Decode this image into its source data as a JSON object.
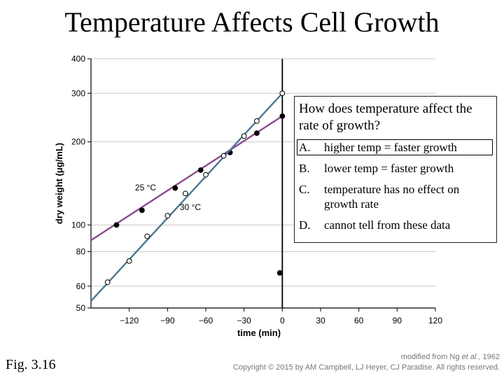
{
  "title": "Temperature Affects Cell Growth",
  "question": {
    "prompt": "How does temperature affect the rate of growth?",
    "choices": [
      {
        "letter": "A.",
        "text": "higher temp = faster growth"
      },
      {
        "letter": "B.",
        "text": "lower temp = faster growth"
      },
      {
        "letter": "C.",
        "text": "temperature has no effect on growth rate"
      },
      {
        "letter": "D.",
        "text": "cannot tell from these data"
      }
    ]
  },
  "figure_label": "Fig. 3.16",
  "credit": {
    "line1_prefix": "modified from Ng ",
    "line1_italic": "et al.",
    "line1_suffix": ", 1962",
    "line2": "Copyright © 2015 by AM Campbell, LJ Heyer, CJ Paradise. All rights reserved."
  },
  "colors": {
    "line_25": "#8a4a8f",
    "line_30": "#4a7893",
    "axis": "#000000",
    "grid": "#c8c8c8"
  },
  "chart_data": {
    "type": "scatter",
    "xlabel": "time (min)",
    "ylabel": "dry weight (μg/mL)",
    "x_ticks": [
      -120,
      -90,
      -60,
      -30,
      0,
      30,
      60,
      90,
      120
    ],
    "x_tick_labels": [
      "−120",
      "−90",
      "−60",
      "−30",
      "0",
      "30",
      "60",
      "90",
      "120"
    ],
    "y_ticks": [
      50,
      60,
      80,
      100,
      200,
      300,
      400
    ],
    "y_tick_labels": [
      "50",
      "60",
      "80",
      "100",
      "200",
      "300",
      "400"
    ],
    "y_scale": "log",
    "xlim": [
      -150,
      120
    ],
    "ylim": [
      50,
      400
    ],
    "grid": "horizontal",
    "series": [
      {
        "name": "25 °C",
        "marker": "filled",
        "points": [
          [
            -130,
            100
          ],
          [
            -110,
            113
          ],
          [
            -84,
            136
          ],
          [
            -64,
            158
          ],
          [
            -41,
            183
          ],
          [
            -20,
            215
          ],
          [
            0,
            248
          ],
          [
            -2,
            67
          ]
        ],
        "trend": [
          [
            -150,
            88
          ],
          [
            0,
            248
          ]
        ]
      },
      {
        "name": "30 °C",
        "marker": "open",
        "points": [
          [
            -137,
            62
          ],
          [
            -120,
            74
          ],
          [
            -106,
            91
          ],
          [
            -90,
            108
          ],
          [
            -76,
            130
          ],
          [
            -60,
            152
          ],
          [
            -46,
            178
          ],
          [
            -30,
            210
          ],
          [
            -20,
            238
          ],
          [
            0,
            300
          ]
        ],
        "trend": [
          [
            -150,
            53
          ],
          [
            0,
            300
          ]
        ]
      }
    ]
  }
}
